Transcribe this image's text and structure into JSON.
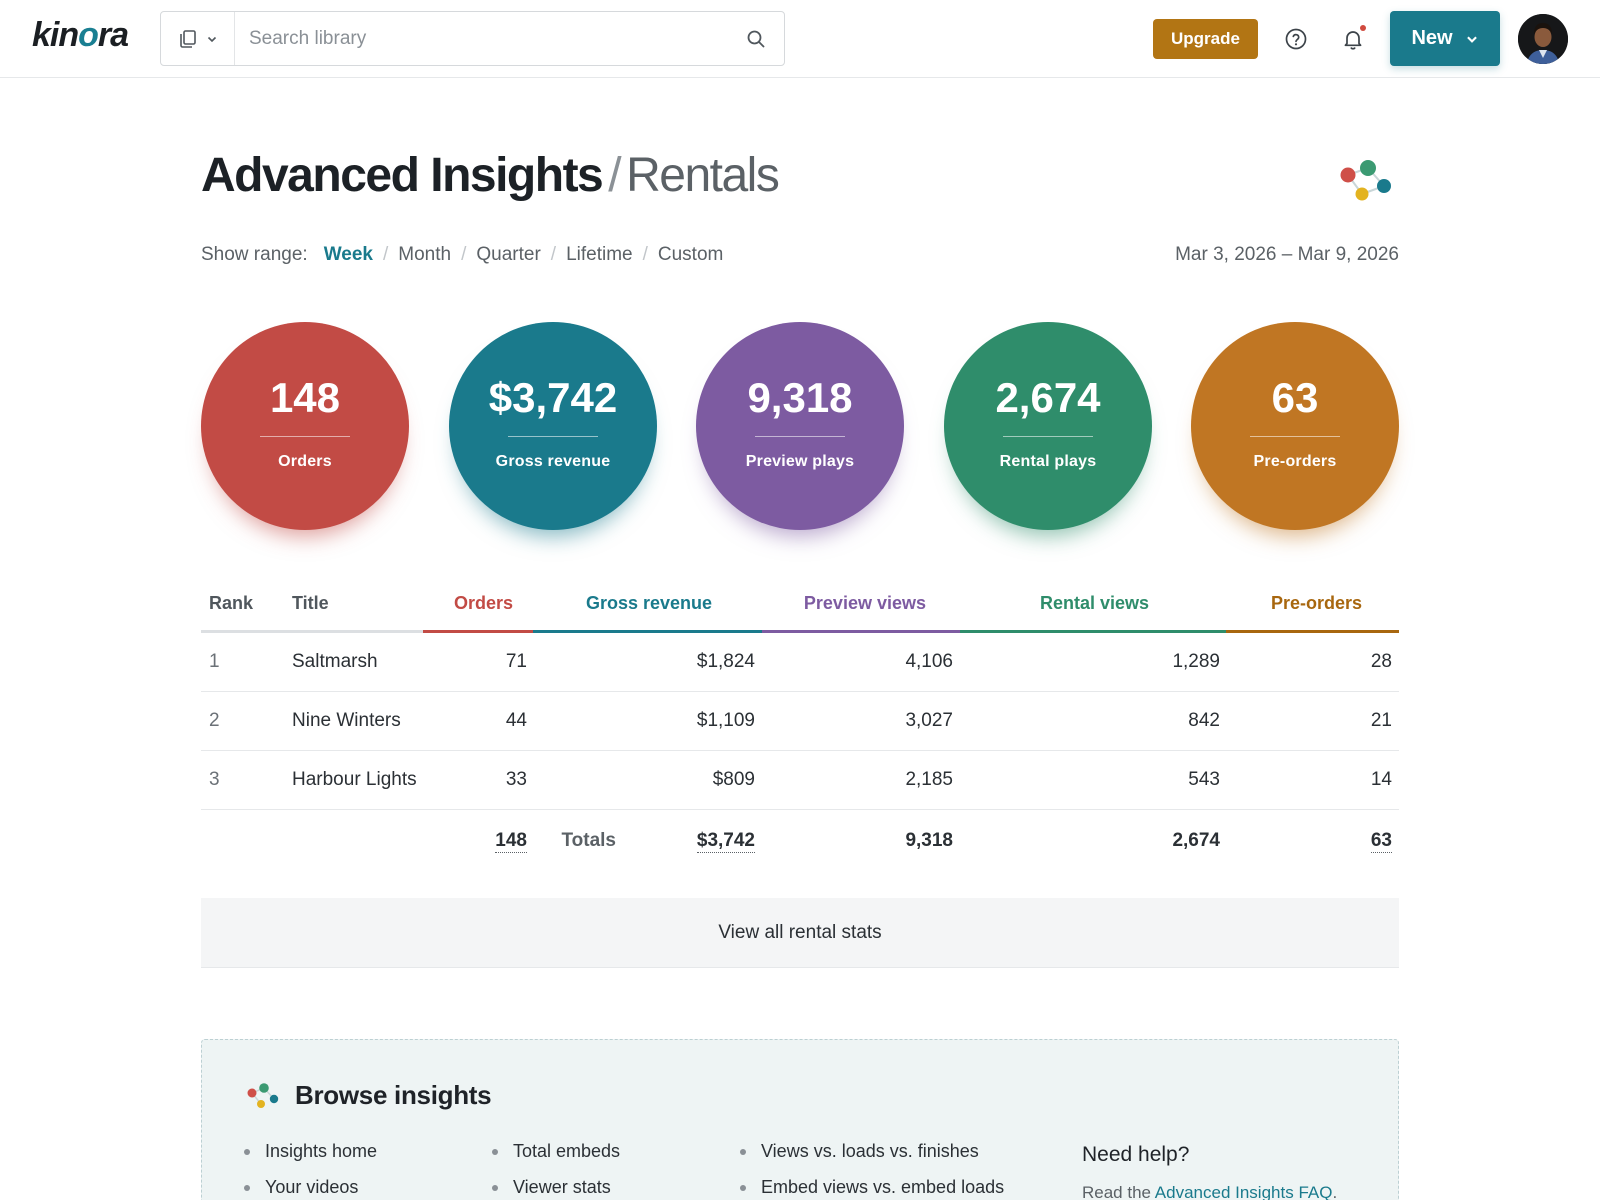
{
  "topbar": {
    "logo_prefix": "kin",
    "logo_accent": "o",
    "logo_suffix": "ra",
    "search_placeholder": "Search library",
    "upgrade_label": "Upgrade",
    "new_label": "New",
    "icons": {
      "library": "library-icon",
      "chevron": "chevron-down-icon",
      "search": "search-icon",
      "help": "help-icon",
      "notifications": "bell-icon"
    }
  },
  "header": {
    "title": "Advanced Insights",
    "separator": "/",
    "subtitle": "Rentals",
    "range_label": "Show range:",
    "range_options": [
      "Week",
      "Month",
      "Quarter",
      "Lifetime",
      "Custom"
    ],
    "range_active": "Week",
    "range_separator": "/",
    "date_range": "Mar 3, 2026 – Mar 9, 2026"
  },
  "metrics": [
    {
      "value": "148",
      "label": "Orders",
      "color": "#c24b45"
    },
    {
      "value": "$3,742",
      "label": "Gross revenue",
      "color": "#1a7a8c"
    },
    {
      "value": "9,318",
      "label": "Preview plays",
      "color": "#7d5ba1"
    },
    {
      "value": "2,674",
      "label": "Rental plays",
      "color": "#2f8d6b"
    },
    {
      "value": "63",
      "label": "Pre-orders",
      "color": "#c07623"
    }
  ],
  "table": {
    "headers": {
      "rank": "Rank",
      "title": "Title",
      "orders": "Orders",
      "gross_revenue": "Gross revenue",
      "preview_views": "Preview views",
      "rental_views": "Rental views",
      "pre_orders": "Pre-orders"
    },
    "header_colors": {
      "orders": "#c24b45",
      "gross_revenue": "#1a7a8c",
      "preview_views": "#7d5ba1",
      "rental_views": "#2f8d6b",
      "pre_orders": "#a8670f"
    },
    "rows": [
      {
        "rank": "1",
        "title": "Saltmarsh",
        "orders": "71",
        "gross_revenue": "$1,824",
        "preview_views": "4,106",
        "rental_views": "1,289",
        "pre_orders": "28"
      },
      {
        "rank": "2",
        "title": "Nine Winters",
        "orders": "44",
        "gross_revenue": "$1,109",
        "preview_views": "3,027",
        "rental_views": "842",
        "pre_orders": "21"
      },
      {
        "rank": "3",
        "title": "Harbour Lights",
        "orders": "33",
        "gross_revenue": "$809",
        "preview_views": "2,185",
        "rental_views": "543",
        "pre_orders": "14"
      }
    ],
    "totals": {
      "label": "Totals",
      "orders": "148",
      "gross_revenue": "$3,742",
      "preview_views": "9,318",
      "rental_views": "2,674",
      "pre_orders": "63"
    }
  },
  "view_all_label": "View all rental stats",
  "browse": {
    "title": "Browse insights",
    "columns": [
      [
        "Insights home",
        "Your videos"
      ],
      [
        "Total embeds",
        "Viewer stats"
      ],
      [
        "Views vs. loads vs. finishes",
        "Embed views vs. embed loads"
      ]
    ],
    "help_title": "Need help?",
    "help_prefix": "Read the",
    "help_link": "Advanced Insights FAQ",
    "help_suffix": "."
  }
}
